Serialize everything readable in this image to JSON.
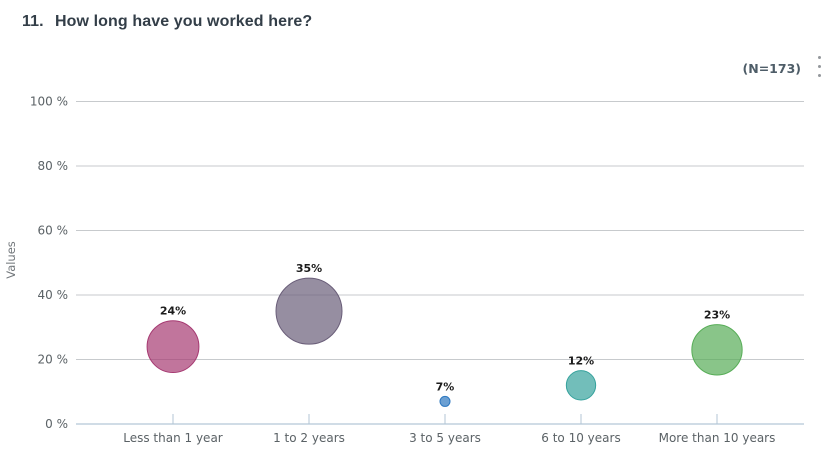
{
  "header": {
    "number": "11.",
    "question": "How long have you worked here?"
  },
  "respondents_label": "(N=173)",
  "menu": {
    "icon": "kebab-vertical-icon"
  },
  "chart_data": {
    "type": "bubble",
    "title": "",
    "categories": [
      "Less than 1 year",
      "1 to 2 years",
      "3 to 5 years",
      "6 to 10 years",
      "More than 10 years"
    ],
    "values": [
      24,
      35,
      7,
      12,
      23
    ],
    "point_labels": [
      "24%",
      "35%",
      "7%",
      "12%",
      "23%"
    ],
    "point_colors": [
      "#a63a72",
      "#6a5e79",
      "#2e78c0",
      "#36a29d",
      "#57ad57"
    ],
    "xlabel": "",
    "ylabel": "Values",
    "ytick_labels": [
      "0 %",
      "20 %",
      "40 %",
      "60 %",
      "80 %",
      "100 %"
    ],
    "ylim": [
      0,
      100
    ],
    "grid": true,
    "legend": false,
    "gridline_color": "#c7cacd",
    "axis_line_color": "#b3c6d6",
    "tick_label_color": "#5b6266",
    "axis_title_color": "#72777b",
    "value_label_color": "#1c1c1c"
  }
}
